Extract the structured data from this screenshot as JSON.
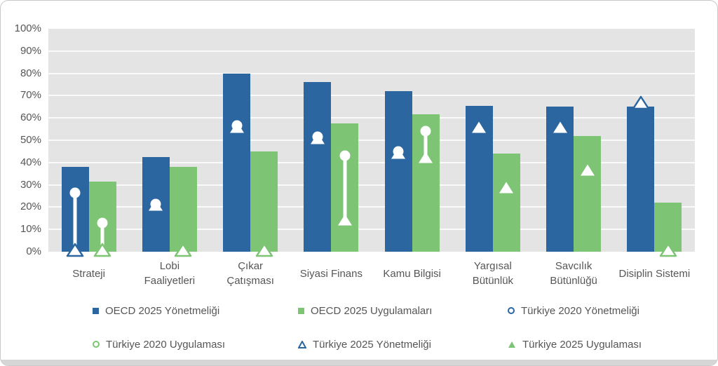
{
  "colors": {
    "blue": "#2b66a0",
    "green": "#7dc474",
    "plot_background": "#e4e4e4",
    "gridline": "#fafafa",
    "text": "#565656",
    "card_border": "#c9c9c9",
    "marker_white": "#ffffff"
  },
  "chart_data": {
    "type": "bar",
    "title": "",
    "xlabel": "",
    "ylabel": "",
    "ylim": [
      0,
      100
    ],
    "ytick_step": 10,
    "ytick_labels": [
      "100%",
      "90%",
      "80%",
      "70%",
      "60%",
      "50%",
      "40%",
      "30%",
      "20%",
      "10%",
      "0%"
    ],
    "grid": true,
    "legend_position": "bottom",
    "categories": [
      "Strateji",
      "Lobi Faaliyetleri",
      "Çıkar Çatışması",
      "Siyasi Finans",
      "Kamu Bilgisi",
      "Yargısal Bütünlük",
      "Savcılık Bütünlüğü",
      "Disiplin Sistemi"
    ],
    "tick_labels": [
      "Strateji",
      "Lobi\nFaaliyetleri",
      "Çıkar\nÇatışması",
      "Siyasi Finans",
      "Kamu Bilgisi",
      "Yargısal\nBütünlük",
      "Savcılık\nBütünlüğü",
      "Disiplin Sistemi"
    ],
    "series": [
      {
        "key": "oecd-2025-yonetmeligi",
        "name": "OECD 2025 Yönetmeliği",
        "type": "bar",
        "color": "#2b66a0",
        "values": [
          38,
          42.5,
          80,
          76,
          72,
          65.5,
          65,
          65
        ]
      },
      {
        "key": "oecd-2025-uygulamalari",
        "name": "OECD 2025 Uygulamaları",
        "type": "bar",
        "color": "#7dc474",
        "values": [
          31.5,
          38,
          45,
          57.5,
          61.5,
          44,
          52,
          22
        ]
      },
      {
        "key": "turkiye-2020-yonetmeligi",
        "name": "Türkiye 2020 Yönetmeliği",
        "type": "marker-circle",
        "color": "#2b66a0",
        "values": [
          26.5,
          21.5,
          56.5,
          51.5,
          45,
          null,
          null,
          null
        ]
      },
      {
        "key": "turkiye-2020-uygulamasi",
        "name": "Türkiye 2020 Uygulaması",
        "type": "marker-circle",
        "color": "#7dc474",
        "values": [
          13,
          null,
          null,
          43,
          54,
          null,
          null,
          null
        ]
      },
      {
        "key": "turkiye-2025-yonetmeligi",
        "name": "Türkiye 2025 Yönetmeliği",
        "type": "marker-triangle",
        "color": "#2b66a0",
        "values": [
          0,
          20,
          55,
          50,
          43.5,
          55,
          55,
          66
        ]
      },
      {
        "key": "turkiye-2025-uygulamasi",
        "name": "Türkiye 2025 Uygulaması",
        "type": "marker-triangle",
        "color": "#7dc474",
        "values": [
          0,
          0,
          0,
          13.5,
          41.5,
          28,
          36,
          0
        ]
      }
    ]
  },
  "legend": {
    "items": [
      {
        "label": "OECD 2025 Yönetmeliği",
        "marker": "square",
        "color": "#2b66a0"
      },
      {
        "label": "OECD 2025 Uygulamaları",
        "marker": "square",
        "color": "#7dc474"
      },
      {
        "label": "Türkiye 2020 Yönetmeliği",
        "marker": "circle",
        "color": "#2b66a0"
      },
      {
        "label": "Türkiye 2020 Uygulaması",
        "marker": "circle",
        "color": "#7dc474"
      },
      {
        "label": "Türkiye 2025 Yönetmeliği",
        "marker": "triangle-outline",
        "color": "#2b66a0"
      },
      {
        "label": "Türkiye 2025 Uygulaması",
        "marker": "triangle-filled",
        "color": "#7dc474"
      }
    ]
  }
}
